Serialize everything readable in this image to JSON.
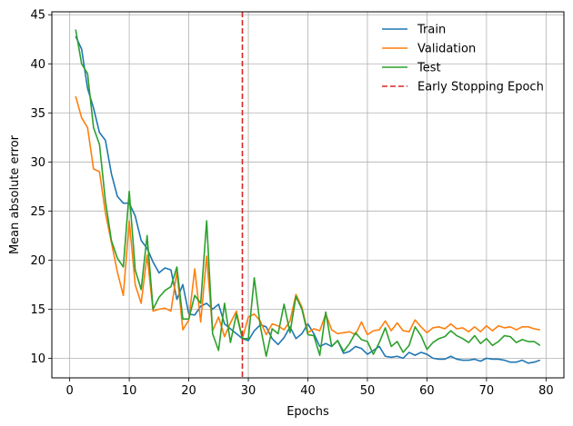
{
  "chart_data": {
    "type": "line",
    "xlabel": "Epochs",
    "ylabel": "Mean absolute error",
    "xlim": [
      -3,
      83
    ],
    "ylim": [
      8,
      45.3
    ],
    "xticks": [
      0,
      10,
      20,
      30,
      40,
      50,
      60,
      70,
      80
    ],
    "yticks": [
      10,
      15,
      20,
      25,
      30,
      35,
      40,
      45
    ],
    "grid": true,
    "legend_position": "top-right",
    "early_stopping_epoch": 29,
    "early_stopping_label": "Early Stopping Epoch",
    "early_stopping_color": "#d62728",
    "x": [
      1,
      2,
      3,
      4,
      5,
      6,
      7,
      8,
      9,
      10,
      11,
      12,
      13,
      14,
      15,
      16,
      17,
      18,
      19,
      20,
      21,
      22,
      23,
      24,
      25,
      26,
      27,
      28,
      29,
      30,
      31,
      32,
      33,
      34,
      35,
      36,
      37,
      38,
      39,
      40,
      41,
      42,
      43,
      44,
      45,
      46,
      47,
      48,
      49,
      50,
      51,
      52,
      53,
      54,
      55,
      56,
      57,
      58,
      59,
      60,
      61,
      62,
      63,
      64,
      65,
      66,
      67,
      68,
      69,
      70,
      71,
      72,
      73,
      74,
      75,
      76,
      77,
      78,
      79
    ],
    "series": [
      {
        "name": "Train",
        "color": "#1f77b4",
        "values": [
          42.8,
          41.5,
          37.5,
          35.5,
          33.0,
          32.2,
          28.8,
          26.5,
          25.8,
          25.8,
          24.5,
          22.0,
          21.2,
          19.8,
          18.7,
          19.2,
          19.0,
          16.0,
          17.5,
          14.5,
          14.4,
          15.3,
          15.6,
          15.0,
          15.5,
          13.5,
          13.0,
          12.5,
          12.0,
          11.8,
          12.8,
          13.4,
          13.2,
          12.0,
          11.4,
          12.1,
          13.2,
          12.0,
          12.5,
          13.5,
          12.5,
          11.2,
          11.5,
          11.2,
          11.8,
          10.5,
          10.7,
          11.2,
          11.0,
          10.4,
          10.8,
          11.2,
          10.2,
          10.1,
          10.2,
          10.0,
          10.6,
          10.3,
          10.6,
          10.4,
          10.0,
          9.9,
          9.9,
          10.2,
          9.9,
          9.8,
          9.8,
          9.9,
          9.7,
          10.0,
          9.9,
          9.9,
          9.8,
          9.6,
          9.6,
          9.8,
          9.5,
          9.6,
          9.8
        ]
      },
      {
        "name": "Validation",
        "color": "#ff7f0e",
        "values": [
          36.7,
          34.5,
          33.5,
          29.3,
          29.0,
          24.8,
          21.8,
          18.8,
          16.4,
          24.0,
          17.5,
          15.6,
          20.5,
          14.8,
          15.0,
          15.1,
          14.8,
          18.8,
          12.9,
          13.9,
          19.1,
          13.7,
          20.4,
          12.8,
          14.2,
          12.2,
          13.6,
          14.8,
          12.0,
          14.2,
          14.5,
          13.8,
          12.4,
          13.5,
          13.3,
          12.9,
          13.8,
          16.5,
          15.2,
          12.6,
          13.0,
          12.8,
          14.5,
          12.9,
          12.5,
          12.6,
          12.7,
          12.4,
          13.7,
          12.4,
          12.8,
          12.9,
          13.8,
          12.8,
          13.6,
          12.8,
          12.7,
          13.9,
          13.2,
          12.6,
          13.1,
          13.2,
          13.0,
          13.5,
          13.0,
          13.1,
          12.7,
          13.2,
          12.7,
          13.3,
          12.8,
          13.3,
          13.1,
          13.2,
          12.9,
          13.2,
          13.2,
          13.0,
          12.9
        ]
      },
      {
        "name": "Test",
        "color": "#2ca02c",
        "values": [
          43.5,
          40.0,
          39.0,
          33.5,
          31.8,
          26.0,
          22.0,
          20.2,
          19.3,
          27.0,
          19.0,
          17.0,
          22.5,
          15.0,
          16.2,
          16.9,
          17.3,
          19.3,
          14.0,
          14.0,
          16.4,
          15.6,
          24.0,
          12.5,
          10.8,
          15.6,
          11.6,
          14.5,
          12.0,
          12.0,
          18.2,
          13.3,
          10.2,
          13.0,
          12.5,
          15.5,
          12.6,
          16.3,
          15.0,
          12.4,
          12.3,
          10.3,
          14.7,
          11.2,
          11.8,
          10.7,
          11.5,
          12.6,
          11.9,
          11.7,
          10.4,
          11.6,
          13.1,
          11.2,
          11.7,
          10.6,
          11.3,
          13.2,
          12.3,
          10.9,
          11.6,
          12.0,
          12.2,
          12.8,
          12.3,
          12.0,
          11.6,
          12.3,
          11.5,
          12.0,
          11.3,
          11.7,
          12.3,
          12.2,
          11.6,
          11.9,
          11.7,
          11.7,
          11.3
        ]
      }
    ]
  }
}
